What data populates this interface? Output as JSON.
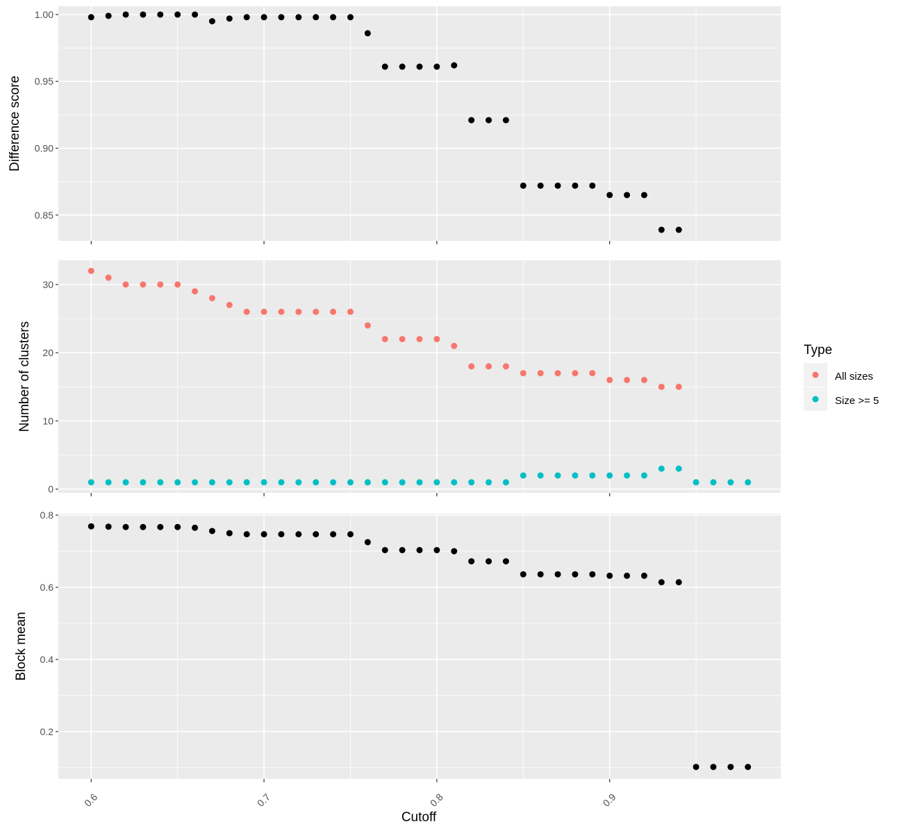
{
  "chart_data": {
    "type": "scatter",
    "xlabel": "Cutoff",
    "x_ticks": [
      "0.6",
      "0.7",
      "0.8",
      "0.9"
    ],
    "xlim": [
      0.581,
      0.999
    ],
    "grid": true,
    "legend": {
      "title": "Type",
      "placement": "right",
      "entries": [
        {
          "name": "All sizes",
          "color": "#F8766D"
        },
        {
          "name": "Size >= 5",
          "color": "#00BFC4"
        }
      ]
    },
    "panels": [
      {
        "ylabel": "Difference score",
        "ylim": [
          0.8307,
          1.0062
        ],
        "y_ticks": [
          "0.85",
          "0.90",
          "0.95",
          "1.00"
        ],
        "series": [
          {
            "color": "#000000",
            "x": [
              0.6,
              0.61,
              0.62,
              0.63,
              0.64,
              0.65,
              0.66,
              0.67,
              0.68,
              0.69,
              0.7,
              0.71,
              0.72,
              0.73,
              0.74,
              0.75,
              0.76,
              0.77,
              0.78,
              0.79,
              0.8,
              0.81,
              0.82,
              0.83,
              0.84,
              0.85,
              0.86,
              0.87,
              0.88,
              0.89,
              0.9,
              0.91,
              0.92,
              0.93,
              0.94
            ],
            "y": [
              0.998,
              0.999,
              1.0,
              1.0,
              1.0,
              1.0,
              1.0,
              0.995,
              0.997,
              0.998,
              0.998,
              0.998,
              0.998,
              0.998,
              0.998,
              0.998,
              0.986,
              0.961,
              0.961,
              0.961,
              0.961,
              0.962,
              0.921,
              0.921,
              0.921,
              0.872,
              0.872,
              0.872,
              0.872,
              0.872,
              0.865,
              0.865,
              0.865,
              0.839,
              0.839
            ]
          }
        ]
      },
      {
        "ylabel": "Number of clusters",
        "ylim": [
          -0.55,
          33.55
        ],
        "y_ticks": [
          "0",
          "10",
          "20",
          "30"
        ],
        "series": [
          {
            "name": "All sizes",
            "color": "#F8766D",
            "x": [
              0.6,
              0.61,
              0.62,
              0.63,
              0.64,
              0.65,
              0.66,
              0.67,
              0.68,
              0.69,
              0.7,
              0.71,
              0.72,
              0.73,
              0.74,
              0.75,
              0.76,
              0.77,
              0.78,
              0.79,
              0.8,
              0.81,
              0.82,
              0.83,
              0.84,
              0.85,
              0.86,
              0.87,
              0.88,
              0.89,
              0.9,
              0.91,
              0.92,
              0.93,
              0.94
            ],
            "y": [
              32,
              31,
              30,
              30,
              30,
              30,
              29,
              28,
              27,
              26,
              26,
              26,
              26,
              26,
              26,
              26,
              24,
              22,
              22,
              22,
              22,
              21,
              18,
              18,
              18,
              17,
              17,
              17,
              17,
              17,
              16,
              16,
              16,
              15,
              15
            ]
          },
          {
            "name": "Size >= 5",
            "color": "#00BFC4",
            "x": [
              0.6,
              0.61,
              0.62,
              0.63,
              0.64,
              0.65,
              0.66,
              0.67,
              0.68,
              0.69,
              0.7,
              0.71,
              0.72,
              0.73,
              0.74,
              0.75,
              0.76,
              0.77,
              0.78,
              0.79,
              0.8,
              0.81,
              0.82,
              0.83,
              0.84,
              0.85,
              0.86,
              0.87,
              0.88,
              0.89,
              0.9,
              0.91,
              0.92,
              0.93,
              0.94,
              0.95,
              0.96,
              0.97,
              0.98
            ],
            "y": [
              1,
              1,
              1,
              1,
              1,
              1,
              1,
              1,
              1,
              1,
              1,
              1,
              1,
              1,
              1,
              1,
              1,
              1,
              1,
              1,
              1,
              1,
              1,
              1,
              1,
              2,
              2,
              2,
              2,
              2,
              2,
              2,
              2,
              3,
              3,
              1,
              1,
              1,
              1
            ]
          }
        ]
      },
      {
        "ylabel": "Block mean",
        "ylim": [
          0.069,
          0.804
        ],
        "y_ticks": [
          "0.2",
          "0.4",
          "0.6",
          "0.8"
        ],
        "series": [
          {
            "color": "#000000",
            "x": [
              0.6,
              0.61,
              0.62,
              0.63,
              0.64,
              0.65,
              0.66,
              0.67,
              0.68,
              0.69,
              0.7,
              0.71,
              0.72,
              0.73,
              0.74,
              0.75,
              0.76,
              0.77,
              0.78,
              0.79,
              0.8,
              0.81,
              0.82,
              0.83,
              0.84,
              0.85,
              0.86,
              0.87,
              0.88,
              0.89,
              0.9,
              0.91,
              0.92,
              0.93,
              0.94,
              0.95,
              0.96,
              0.97,
              0.98
            ],
            "y": [
              0.769,
              0.768,
              0.767,
              0.767,
              0.767,
              0.767,
              0.765,
              0.756,
              0.75,
              0.747,
              0.747,
              0.747,
              0.747,
              0.747,
              0.747,
              0.747,
              0.725,
              0.703,
              0.703,
              0.703,
              0.703,
              0.7,
              0.672,
              0.672,
              0.672,
              0.636,
              0.636,
              0.636,
              0.636,
              0.636,
              0.632,
              0.632,
              0.632,
              0.614,
              0.614,
              0.102,
              0.102,
              0.102,
              0.102
            ]
          }
        ]
      }
    ]
  }
}
